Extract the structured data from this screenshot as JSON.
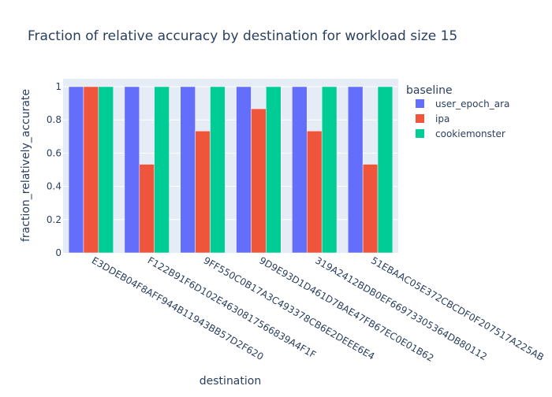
{
  "chart_data": {
    "type": "bar",
    "title": "Fraction of relative accuracy by destination for workload size 15",
    "xlabel": "destination",
    "ylabel": "fraction_relatively_accurate",
    "ylim": [
      0,
      1
    ],
    "yticks": [
      "0",
      "0.2",
      "0.4",
      "0.6",
      "0.8",
      "1"
    ],
    "grid": true,
    "legend_title": "baseline",
    "legend_position": "right",
    "categories": [
      "E3DDEB04F8AFF944B11943BB57D2F620",
      "F122B91F6D102E4630817566839A4F1F",
      "9FF550C0B17A3C493378CB6E2DEEE6E4",
      "9D9E93D1D461D7BAE47FB67EC0E01B62",
      "319A2412BDB0EF66973305364DB80112",
      "51EBAAC05E372CBCDF0F207517A225AB"
    ],
    "series": [
      {
        "name": "user_epoch_ara",
        "color": "#636efa",
        "values": [
          1,
          1,
          1,
          1,
          1,
          1
        ]
      },
      {
        "name": "ipa",
        "color": "#EF553B",
        "values": [
          1,
          0.533,
          0.733,
          0.867,
          0.733,
          0.533
        ]
      },
      {
        "name": "cookiemonster",
        "color": "#00cc96",
        "values": [
          1,
          1,
          1,
          1,
          1,
          1
        ]
      }
    ]
  }
}
